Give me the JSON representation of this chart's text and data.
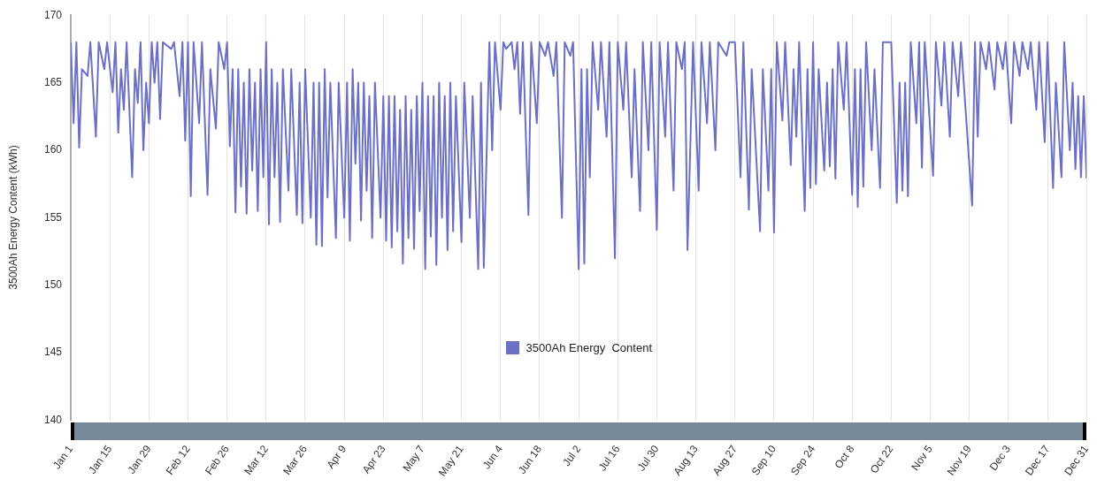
{
  "chart_data": {
    "type": "line",
    "ylabel": "3500Ah Energy Content (kWh)",
    "legend": "bottom",
    "grid": "x",
    "marker": "none",
    "line_style": "solid",
    "ylim": [
      140,
      170
    ],
    "yticks": [
      140,
      145,
      150,
      155,
      160,
      165,
      170
    ],
    "xlim": [
      "--01-01",
      "--12-31"
    ],
    "xticks": [
      {
        "value": "--01-01",
        "label": "Jan 1"
      },
      {
        "value": "--01-15",
        "label": "Jan 15"
      },
      {
        "value": "--01-29",
        "label": "Jan 29"
      },
      {
        "value": "--02-12",
        "label": "Feb 12"
      },
      {
        "value": "--02-26",
        "label": "Feb 26"
      },
      {
        "value": "--03-12",
        "label": "Mar 12"
      },
      {
        "value": "--03-26",
        "label": "Mar 26"
      },
      {
        "value": "--04-09",
        "label": "Apr 9"
      },
      {
        "value": "--04-23",
        "label": "Apr 23"
      },
      {
        "value": "--05-07",
        "label": "May 7"
      },
      {
        "value": "--05-21",
        "label": "May 21"
      },
      {
        "value": "--06-04",
        "label": "Jun 4"
      },
      {
        "value": "--06-18",
        "label": "Jun 18"
      },
      {
        "value": "--07-02",
        "label": "Jul 2"
      },
      {
        "value": "--07-16",
        "label": "Jul 16"
      },
      {
        "value": "--07-30",
        "label": "Jul 30"
      },
      {
        "value": "--08-13",
        "label": "Aug 13"
      },
      {
        "value": "--08-27",
        "label": "Aug 27"
      },
      {
        "value": "--09-10",
        "label": "Sep 10"
      },
      {
        "value": "--09-24",
        "label": "Sep 24"
      },
      {
        "value": "--10-08",
        "label": "Oct 8"
      },
      {
        "value": "--10-22",
        "label": "Oct 22"
      },
      {
        "value": "--11-05",
        "label": "Nov 5"
      },
      {
        "value": "--11-19",
        "label": "Nov 19"
      },
      {
        "value": "--12-03",
        "label": "Dec 3"
      },
      {
        "value": "--12-17",
        "label": "Dec 17"
      },
      {
        "value": "--12-31",
        "label": "Dec 31"
      }
    ],
    "x": [
      "--01-01",
      "--01-02",
      "--01-03",
      "--01-04",
      "--01-05",
      "--01-07",
      "--01-08",
      "--01-10",
      "--01-11",
      "--01-13",
      "--01-14",
      "--01-16",
      "--01-17",
      "--01-18",
      "--01-19",
      "--01-20",
      "--01-21",
      "--01-23",
      "--01-24",
      "--01-25",
      "--01-26",
      "--01-27",
      "--01-28",
      "--01-29",
      "--01-30",
      "--01-31",
      "--02-01",
      "--02-02",
      "--02-03",
      "--02-06",
      "--02-07",
      "--02-09",
      "--02-10",
      "--02-11",
      "--02-12",
      "--02-13",
      "--02-14",
      "--02-16",
      "--02-17",
      "--02-19",
      "--02-20",
      "--02-22",
      "--02-23",
      "--02-25",
      "--02-26",
      "--02-27",
      "--02-28",
      "--03-01",
      "--03-02",
      "--03-03",
      "--03-04",
      "--03-05",
      "--03-06",
      "--03-07",
      "--03-08",
      "--03-09",
      "--03-10",
      "--03-11",
      "--03-12",
      "--03-13",
      "--03-14",
      "--03-15",
      "--03-16",
      "--03-17",
      "--03-18",
      "--03-20",
      "--03-21",
      "--03-23",
      "--03-24",
      "--03-25",
      "--03-26",
      "--03-28",
      "--03-29",
      "--03-30",
      "--03-31",
      "--04-01",
      "--04-02",
      "--04-03",
      "--04-04",
      "--04-06",
      "--04-07",
      "--04-09",
      "--04-10",
      "--04-11",
      "--04-12",
      "--04-13",
      "--04-14",
      "--04-15",
      "--04-16",
      "--04-17",
      "--04-18",
      "--04-19",
      "--04-20",
      "--04-22",
      "--04-23",
      "--04-24",
      "--04-25",
      "--04-26",
      "--04-27",
      "--04-28",
      "--04-29",
      "--04-30",
      "--05-01",
      "--05-02",
      "--05-03",
      "--05-04",
      "--05-05",
      "--05-06",
      "--05-07",
      "--05-08",
      "--05-09",
      "--05-10",
      "--05-11",
      "--05-12",
      "--05-13",
      "--05-14",
      "--05-15",
      "--05-16",
      "--05-17",
      "--05-18",
      "--05-19",
      "--05-21",
      "--05-22",
      "--05-24",
      "--05-25",
      "--05-27",
      "--05-28",
      "--05-29",
      "--05-31",
      "--06-01",
      "--06-02",
      "--06-04",
      "--06-05",
      "--06-06",
      "--06-08",
      "--06-09",
      "--06-10",
      "--06-11",
      "--06-12",
      "--06-14",
      "--06-15",
      "--06-17",
      "--06-18",
      "--06-20",
      "--06-21",
      "--06-23",
      "--06-24",
      "--06-26",
      "--06-27",
      "--06-29",
      "--06-30",
      "--07-02",
      "--07-03",
      "--07-04",
      "--07-05",
      "--07-06",
      "--07-07",
      "--07-09",
      "--07-10",
      "--07-12",
      "--07-13",
      "--07-15",
      "--07-16",
      "--07-18",
      "--07-19",
      "--07-21",
      "--07-22",
      "--07-24",
      "--07-25",
      "--07-27",
      "--07-28",
      "--07-30",
      "--07-31",
      "--08-02",
      "--08-03",
      "--08-05",
      "--08-06",
      "--08-08",
      "--08-09",
      "--08-10",
      "--08-12",
      "--08-14",
      "--08-15",
      "--08-17",
      "--08-18",
      "--08-20",
      "--08-21",
      "--08-24",
      "--08-25",
      "--08-27",
      "--08-29",
      "--08-30",
      "--09-01",
      "--09-02",
      "--09-05",
      "--09-06",
      "--09-08",
      "--09-09",
      "--09-10",
      "--09-11",
      "--09-13",
      "--09-14",
      "--09-16",
      "--09-17",
      "--09-18",
      "--09-19",
      "--09-21",
      "--09-22",
      "--09-23",
      "--09-24",
      "--09-25",
      "--09-26",
      "--09-28",
      "--09-29",
      "--09-30",
      "--10-01",
      "--10-02",
      "--10-03",
      "--10-05",
      "--10-06",
      "--10-08",
      "--10-09",
      "--10-10",
      "--10-11",
      "--10-12",
      "--10-13",
      "--10-15",
      "--10-16",
      "--10-18",
      "--10-19",
      "--10-22",
      "--10-24",
      "--10-25",
      "--10-26",
      "--10-27",
      "--10-28",
      "--10-29",
      "--10-31",
      "--11-01",
      "--11-02",
      "--11-03",
      "--11-06",
      "--11-07",
      "--11-09",
      "--11-10",
      "--11-12",
      "--11-13",
      "--11-15",
      "--11-16",
      "--11-20",
      "--11-21",
      "--11-22",
      "--11-23",
      "--11-25",
      "--11-26",
      "--11-28",
      "--11-29",
      "--12-01",
      "--12-02",
      "--12-04",
      "--12-05",
      "--12-07",
      "--12-08",
      "--12-10",
      "--12-11",
      "--12-13",
      "--12-14",
      "--12-16",
      "--12-17",
      "--12-19",
      "--12-20",
      "--12-22",
      "--12-23",
      "--12-25",
      "--12-26",
      "--12-27",
      "--12-28",
      "--12-29",
      "--12-30",
      "--12-31"
    ],
    "series": [
      {
        "name": "3500Ah Energy  Content",
        "color": "#6b70c4",
        "values": [
          168,
          162,
          168,
          160.2,
          166,
          165.5,
          168,
          161,
          168,
          166,
          168,
          164.3,
          168,
          161.3,
          166,
          163,
          168,
          158,
          166,
          163.5,
          168,
          160,
          165,
          162,
          168,
          165,
          168,
          162.3,
          168,
          167.5,
          168,
          164,
          168,
          160.7,
          168,
          156.6,
          168,
          162,
          168,
          156.7,
          166,
          161.6,
          168,
          166,
          168,
          160.3,
          166,
          155.4,
          166,
          157.3,
          165,
          155.3,
          166,
          158.5,
          165,
          155.5,
          166,
          158,
          168,
          154.5,
          166,
          158,
          165,
          154.7,
          166,
          157,
          166,
          155.2,
          165,
          154.6,
          166,
          155,
          165,
          153,
          165,
          152.9,
          166,
          156.5,
          165,
          153.5,
          165,
          155,
          165,
          153.3,
          166,
          159,
          165,
          154.8,
          165,
          157,
          164,
          153.5,
          165,
          155,
          164,
          153.3,
          164,
          152.8,
          164,
          154,
          163,
          151.6,
          164,
          153.5,
          163,
          152.7,
          164,
          155.5,
          165,
          151.2,
          164,
          153.6,
          164,
          151.5,
          165,
          155,
          164,
          152.6,
          165,
          154,
          164,
          153.2,
          165,
          155,
          164,
          151.2,
          165,
          151.3,
          168,
          160,
          168,
          163,
          168,
          167.5,
          168,
          166,
          168,
          162.7,
          168,
          155.2,
          168,
          162,
          168,
          167,
          168,
          165.5,
          168,
          155,
          168,
          167,
          168,
          151.2,
          166,
          151.6,
          166,
          158,
          168,
          163,
          168,
          161,
          168,
          152,
          168,
          163,
          168,
          158,
          166,
          155.5,
          168,
          160,
          168,
          154.1,
          168,
          161,
          168,
          157,
          168,
          166,
          168,
          152.6,
          168,
          157,
          168,
          162,
          168,
          160,
          168,
          167,
          168,
          168,
          158,
          168,
          155.6,
          166,
          154,
          166,
          157,
          166,
          153.9,
          168,
          162.2,
          168,
          158.9,
          166,
          161,
          168,
          155.5,
          166,
          157.2,
          168,
          157.5,
          166,
          158.5,
          165,
          158.8,
          166,
          157.9,
          168,
          163,
          168,
          156.7,
          166,
          155.8,
          166,
          157.3,
          168,
          160,
          166,
          157.2,
          168,
          168,
          156.1,
          165,
          157,
          165,
          156.6,
          168,
          162,
          168,
          158.7,
          168,
          158.1,
          168,
          163.3,
          168,
          161,
          168,
          164,
          168,
          155.9,
          168,
          161,
          168,
          166,
          168,
          164.5,
          168,
          166,
          168,
          162,
          168,
          165.5,
          168,
          166,
          168,
          163,
          168,
          160.6,
          168,
          157.2,
          165,
          158,
          168,
          160,
          165,
          158.6,
          164,
          158,
          164,
          157.9
        ]
      }
    ]
  }
}
